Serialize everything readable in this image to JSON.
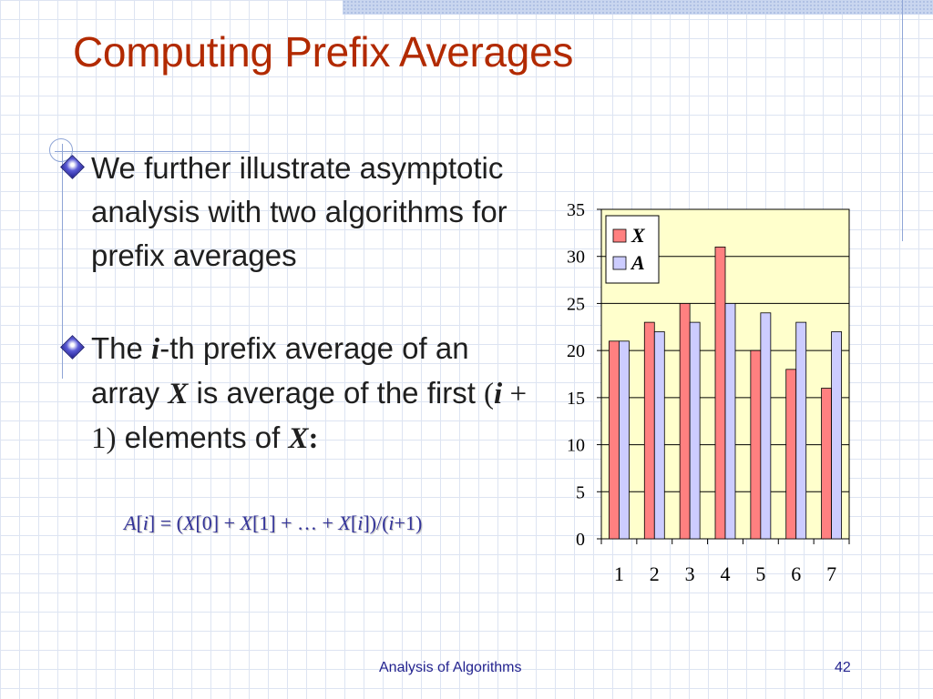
{
  "slide": {
    "title": "Computing Prefix Averages",
    "footer_title": "Analysis of Algorithms",
    "page_number": "42",
    "colors": {
      "title": "#b22a00",
      "text": "#1f1f1f",
      "formula": "#333399",
      "footer": "#23238f"
    }
  },
  "bullets": [
    {
      "text": "We further illustrate asymptotic analysis with two algorithms for prefix averages"
    },
    {
      "part1": "The ",
      "i": "i",
      "part2": "-th prefix average of an array ",
      "x": "X",
      "part3": " is average of the first ",
      "paren_open": "(",
      "i2": "i",
      "plus_one": " + 1)",
      "part4": " elements of ",
      "x2": "X",
      "colon": ":"
    }
  ],
  "formula": "A[i] = (X[0] + X[1] + … + X[i])/(i+1)",
  "chart_data": {
    "type": "bar",
    "categories": [
      "1",
      "2",
      "3",
      "4",
      "5",
      "6",
      "7"
    ],
    "series": [
      {
        "name": "X",
        "values": [
          21,
          23,
          25,
          31,
          20,
          18,
          16
        ],
        "color": "#ff8080"
      },
      {
        "name": "A",
        "values": [
          21,
          22,
          23,
          25,
          24,
          23,
          22
        ],
        "color": "#ccccff"
      }
    ],
    "ylim": [
      0,
      35
    ],
    "yticks": [
      0,
      5,
      10,
      15,
      20,
      25,
      30,
      35
    ],
    "grid": true,
    "plot_background": "#ffffcc",
    "legend": "top-left"
  }
}
